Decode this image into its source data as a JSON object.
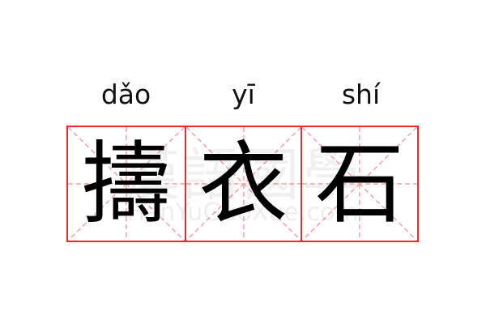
{
  "word": [
    {
      "pinyin": "dǎo",
      "char": "擣"
    },
    {
      "pinyin": "yī",
      "char": "衣"
    },
    {
      "pinyin": "shí",
      "char": "石"
    }
  ],
  "watermark": {
    "text": "漢語國學",
    "url": "HanYuGuoXue.com"
  },
  "colors": {
    "grid_border": "#ee2a2a",
    "guide_lines": "#f4a0a0"
  }
}
